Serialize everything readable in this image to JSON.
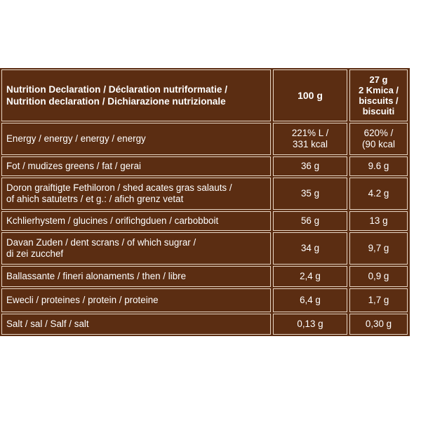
{
  "table": {
    "header": {
      "label_lines": [
        "Nutrition Declaration / Déclaration nutriformatie /",
        "Nutrition declaration / Dichiarazione nutrizionale"
      ],
      "col_100g": "100 g",
      "col_portion_lines": [
        "27 g",
        "2 Kmica /",
        "biscuits /",
        "biscuiti"
      ]
    },
    "rows": [
      {
        "label_lines": [
          "Energy / energy / energy / energy"
        ],
        "per100": [
          "221% L /",
          "331 kcal"
        ],
        "portion": [
          "620% /",
          "(90 kcal"
        ]
      },
      {
        "label_lines": [
          "Fot / mudizes greens / fat / gerai"
        ],
        "per100": [
          "36 g"
        ],
        "portion": [
          "9.6 g"
        ]
      },
      {
        "label_lines": [
          "Doron graiftigte Fethiloron / shed acates gras salauts /",
          "of ahich satutetrs / et g.: / afich grenz vetat"
        ],
        "per100": [
          "35 g"
        ],
        "portion": [
          "4.2 g"
        ]
      },
      {
        "label_lines": [
          "Kchlierhystem / glucines / orifichgduen / carbobboit"
        ],
        "per100": [
          "56 g"
        ],
        "portion": [
          "13 g"
        ]
      },
      {
        "label_lines": [
          "Davan Zuden / dent scrans / of which sugrar /",
          "di zei zucchef"
        ],
        "per100": [
          "34 g"
        ],
        "portion": [
          "9,7 g"
        ]
      },
      {
        "label_lines": [
          "Ballassante / fineri alonaments / then / libre"
        ],
        "per100": [
          "2,4 g"
        ],
        "portion": [
          "0,9 g"
        ]
      },
      {
        "label_lines": [
          "Ewecli / proteines / protein / proteine"
        ],
        "per100": [
          "6,4 g"
        ],
        "portion": [
          "1,7 g"
        ]
      },
      {
        "label_lines": [
          "Salt / sal / Salf / salt"
        ],
        "per100": [
          "0,13 g"
        ],
        "portion": [
          "0,30 g"
        ]
      }
    ]
  }
}
